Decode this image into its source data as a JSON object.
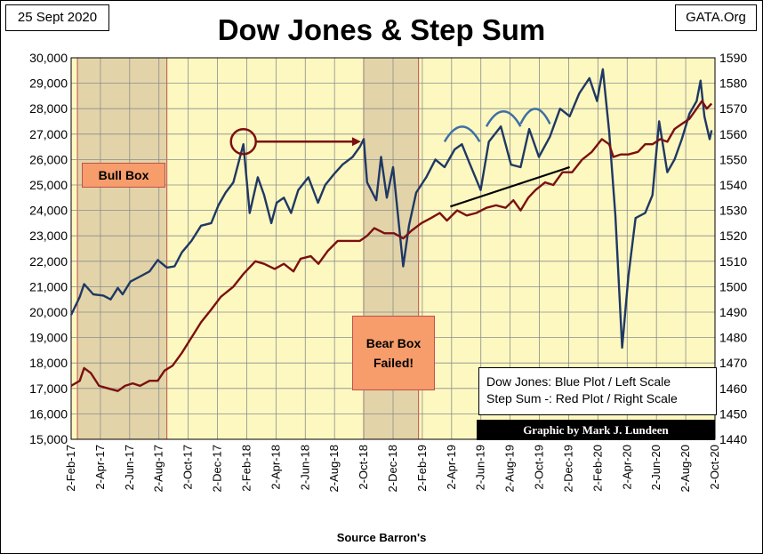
{
  "header": {
    "date": "25 Sept 2020",
    "site": "GATA.Org",
    "title": "Dow Jones & Step Sum"
  },
  "annotations": {
    "bull_box": "Bull Box",
    "bear_box_line1": "Bear Box",
    "bear_box_line2": "Failed!"
  },
  "legend": {
    "line1": "Dow Jones: Blue Plot / Left Scale",
    "line2": "Step Sum -: Red Plot / Right Scale"
  },
  "credit": "Graphic by Mark J. Lundeen",
  "source": "Source Barron's",
  "colors": {
    "plot_background": "#fdf8c0",
    "box_shading": "#e2d4a8",
    "box_border": "#c0504d",
    "dow_line": "#1f3864",
    "step_line": "#7b1010",
    "label_fill": "#f79c6b"
  },
  "chart_data": {
    "type": "line",
    "x_tick_labels": [
      "2-Feb-17",
      "2-Apr-17",
      "2-Jun-17",
      "2-Aug-17",
      "2-Oct-17",
      "2-Dec-17",
      "2-Feb-18",
      "2-Apr-18",
      "2-Jun-18",
      "2-Aug-18",
      "2-Oct-18",
      "2-Dec-18",
      "2-Feb-19",
      "2-Apr-19",
      "2-Jun-19",
      "2-Aug-19",
      "2-Oct-19",
      "2-Dec-19",
      "2-Feb-20",
      "2-Apr-20",
      "2-Jun-20",
      "2-Aug-20",
      "2-Oct-20"
    ],
    "left_axis": {
      "ylim": [
        15000,
        30000
      ],
      "ticks": [
        "15,000",
        "16,000",
        "17,000",
        "18,000",
        "19,000",
        "20,000",
        "21,000",
        "22,000",
        "23,000",
        "24,000",
        "25,000",
        "26,000",
        "27,000",
        "28,000",
        "29,000",
        "30,000"
      ]
    },
    "right_axis": {
      "ylim": [
        1440,
        1590
      ],
      "ticks": [
        "1440",
        "1450",
        "1460",
        "1470",
        "1480",
        "1490",
        "1500",
        "1510",
        "1520",
        "1530",
        "1540",
        "1550",
        "1560",
        "1570",
        "1580",
        "1590"
      ]
    },
    "shaded_boxes": [
      {
        "name": "Bull Box",
        "start": "2017-02-15",
        "end": "2017-08-20"
      },
      {
        "name": "Bear Box",
        "start": "2018-10-03",
        "end": "2019-01-25"
      }
    ],
    "series": [
      {
        "axis": "left",
        "points": [
          [
            "2017-02-02",
            19890
          ],
          [
            "2017-02-20",
            20600
          ],
          [
            "2017-03-01",
            21100
          ],
          [
            "2017-03-20",
            20700
          ],
          [
            "2017-04-10",
            20650
          ],
          [
            "2017-04-25",
            20500
          ],
          [
            "2017-05-10",
            20950
          ],
          [
            "2017-05-20",
            20700
          ],
          [
            "2017-06-05",
            21200
          ],
          [
            "2017-06-25",
            21400
          ],
          [
            "2017-07-15",
            21600
          ],
          [
            "2017-08-01",
            22050
          ],
          [
            "2017-08-20",
            21750
          ],
          [
            "2017-09-05",
            21800
          ],
          [
            "2017-09-20",
            22350
          ],
          [
            "2017-10-10",
            22800
          ],
          [
            "2017-10-30",
            23400
          ],
          [
            "2017-11-20",
            23500
          ],
          [
            "2017-12-05",
            24200
          ],
          [
            "2017-12-20",
            24700
          ],
          [
            "2018-01-05",
            25100
          ],
          [
            "2018-01-26",
            26600
          ],
          [
            "2018-02-08",
            23900
          ],
          [
            "2018-02-25",
            25300
          ],
          [
            "2018-03-10",
            24600
          ],
          [
            "2018-03-25",
            23500
          ],
          [
            "2018-04-05",
            24300
          ],
          [
            "2018-04-20",
            24500
          ],
          [
            "2018-05-05",
            23900
          ],
          [
            "2018-05-20",
            24800
          ],
          [
            "2018-06-10",
            25300
          ],
          [
            "2018-06-30",
            24300
          ],
          [
            "2018-07-15",
            25000
          ],
          [
            "2018-08-01",
            25400
          ],
          [
            "2018-08-20",
            25800
          ],
          [
            "2018-09-10",
            26100
          ],
          [
            "2018-09-25",
            26500
          ],
          [
            "2018-10-03",
            26800
          ],
          [
            "2018-10-10",
            25100
          ],
          [
            "2018-10-29",
            24400
          ],
          [
            "2018-11-08",
            26100
          ],
          [
            "2018-11-20",
            24500
          ],
          [
            "2018-12-03",
            25700
          ],
          [
            "2018-12-10",
            24400
          ],
          [
            "2018-12-24",
            21800
          ],
          [
            "2019-01-05",
            23400
          ],
          [
            "2019-01-20",
            24700
          ],
          [
            "2019-02-10",
            25300
          ],
          [
            "2019-03-01",
            26000
          ],
          [
            "2019-03-20",
            25700
          ],
          [
            "2019-04-10",
            26400
          ],
          [
            "2019-04-25",
            26600
          ],
          [
            "2019-05-10",
            25900
          ],
          [
            "2019-06-03",
            24800
          ],
          [
            "2019-06-20",
            26700
          ],
          [
            "2019-07-15",
            27300
          ],
          [
            "2019-08-05",
            25800
          ],
          [
            "2019-08-25",
            25700
          ],
          [
            "2019-09-12",
            27200
          ],
          [
            "2019-10-02",
            26100
          ],
          [
            "2019-10-25",
            26900
          ],
          [
            "2019-11-15",
            28000
          ],
          [
            "2019-12-05",
            27700
          ],
          [
            "2019-12-25",
            28600
          ],
          [
            "2020-01-15",
            29200
          ],
          [
            "2020-01-31",
            28300
          ],
          [
            "2020-02-12",
            29550
          ],
          [
            "2020-02-25",
            27100
          ],
          [
            "2020-03-09",
            23800
          ],
          [
            "2020-03-23",
            18600
          ],
          [
            "2020-04-05",
            21400
          ],
          [
            "2020-04-20",
            23700
          ],
          [
            "2020-05-10",
            23900
          ],
          [
            "2020-05-25",
            24600
          ],
          [
            "2020-06-08",
            27500
          ],
          [
            "2020-06-25",
            25500
          ],
          [
            "2020-07-10",
            26000
          ],
          [
            "2020-07-25",
            26800
          ],
          [
            "2020-08-10",
            27800
          ],
          [
            "2020-08-25",
            28300
          ],
          [
            "2020-09-02",
            29100
          ],
          [
            "2020-09-10",
            27700
          ],
          [
            "2020-09-21",
            26800
          ],
          [
            "2020-09-25",
            27150
          ]
        ]
      },
      {
        "axis": "right",
        "points": [
          [
            "2017-02-02",
            1461
          ],
          [
            "2017-02-20",
            1463
          ],
          [
            "2017-03-01",
            1468
          ],
          [
            "2017-03-15",
            1466
          ],
          [
            "2017-04-01",
            1461
          ],
          [
            "2017-04-20",
            1460
          ],
          [
            "2017-05-10",
            1459
          ],
          [
            "2017-05-25",
            1461
          ],
          [
            "2017-06-10",
            1462
          ],
          [
            "2017-06-25",
            1461
          ],
          [
            "2017-07-15",
            1463
          ],
          [
            "2017-08-01",
            1463
          ],
          [
            "2017-08-15",
            1467
          ],
          [
            "2017-09-01",
            1469
          ],
          [
            "2017-09-20",
            1474
          ],
          [
            "2017-10-10",
            1480
          ],
          [
            "2017-10-30",
            1486
          ],
          [
            "2017-11-20",
            1491
          ],
          [
            "2017-12-10",
            1496
          ],
          [
            "2018-01-05",
            1500
          ],
          [
            "2018-01-26",
            1505
          ],
          [
            "2018-02-20",
            1510
          ],
          [
            "2018-03-10",
            1509
          ],
          [
            "2018-04-01",
            1507
          ],
          [
            "2018-04-20",
            1509
          ],
          [
            "2018-05-10",
            1506
          ],
          [
            "2018-05-25",
            1511
          ],
          [
            "2018-06-15",
            1512
          ],
          [
            "2018-07-01",
            1509
          ],
          [
            "2018-07-20",
            1514
          ],
          [
            "2018-08-10",
            1518
          ],
          [
            "2018-09-01",
            1518
          ],
          [
            "2018-09-25",
            1518
          ],
          [
            "2018-10-10",
            1520
          ],
          [
            "2018-10-25",
            1523
          ],
          [
            "2018-11-15",
            1521
          ],
          [
            "2018-12-05",
            1521
          ],
          [
            "2018-12-24",
            1519
          ],
          [
            "2019-01-10",
            1522
          ],
          [
            "2019-01-31",
            1525
          ],
          [
            "2019-02-20",
            1527
          ],
          [
            "2019-03-10",
            1529
          ],
          [
            "2019-03-25",
            1526
          ],
          [
            "2019-04-15",
            1530
          ],
          [
            "2019-05-05",
            1528
          ],
          [
            "2019-05-25",
            1529
          ],
          [
            "2019-06-15",
            1531
          ],
          [
            "2019-07-05",
            1532
          ],
          [
            "2019-07-25",
            1531
          ],
          [
            "2019-08-10",
            1534
          ],
          [
            "2019-08-25",
            1530
          ],
          [
            "2019-09-10",
            1535
          ],
          [
            "2019-09-25",
            1538
          ],
          [
            "2019-10-15",
            1541
          ],
          [
            "2019-11-01",
            1540
          ],
          [
            "2019-11-20",
            1545
          ],
          [
            "2019-12-10",
            1545
          ],
          [
            "2019-12-31",
            1550
          ],
          [
            "2020-01-20",
            1553
          ],
          [
            "2020-02-10",
            1558
          ],
          [
            "2020-02-25",
            1556
          ],
          [
            "2020-03-05",
            1551
          ],
          [
            "2020-03-20",
            1552
          ],
          [
            "2020-04-05",
            1552
          ],
          [
            "2020-04-25",
            1553
          ],
          [
            "2020-05-10",
            1556
          ],
          [
            "2020-05-25",
            1556
          ],
          [
            "2020-06-10",
            1558
          ],
          [
            "2020-06-25",
            1557
          ],
          [
            "2020-07-10",
            1562
          ],
          [
            "2020-07-25",
            1564
          ],
          [
            "2020-08-10",
            1566
          ],
          [
            "2020-08-25",
            1570
          ],
          [
            "2020-09-05",
            1573
          ],
          [
            "2020-09-15",
            1570
          ],
          [
            "2020-09-25",
            1572
          ]
        ]
      }
    ]
  }
}
